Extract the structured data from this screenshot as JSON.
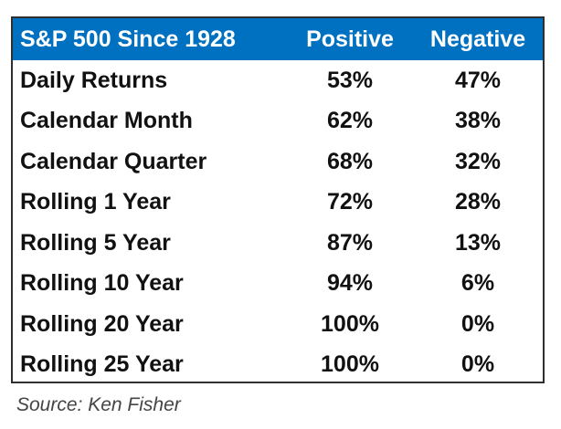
{
  "table": {
    "headers": [
      "S&P 500 Since 1928",
      "Positive",
      "Negative"
    ],
    "rows": [
      {
        "label": "Daily Returns",
        "positive": "53%",
        "negative": "47%"
      },
      {
        "label": "Calendar Month",
        "positive": "62%",
        "negative": "38%"
      },
      {
        "label": "Calendar Quarter",
        "positive": "68%",
        "negative": "32%"
      },
      {
        "label": "Rolling 1 Year",
        "positive": "72%",
        "negative": "28%"
      },
      {
        "label": "Rolling 5 Year",
        "positive": "87%",
        "negative": "13%"
      },
      {
        "label": "Rolling 10 Year",
        "positive": "94%",
        "negative": "6%"
      },
      {
        "label": "Rolling 20 Year",
        "positive": "100%",
        "negative": "0%"
      },
      {
        "label": "Rolling 25 Year",
        "positive": "100%",
        "negative": "0%"
      }
    ]
  },
  "source": "Source: Ken Fisher",
  "colors": {
    "header_bg": "#0070c0",
    "header_text": "#ffffff",
    "body_text": "#111111"
  }
}
